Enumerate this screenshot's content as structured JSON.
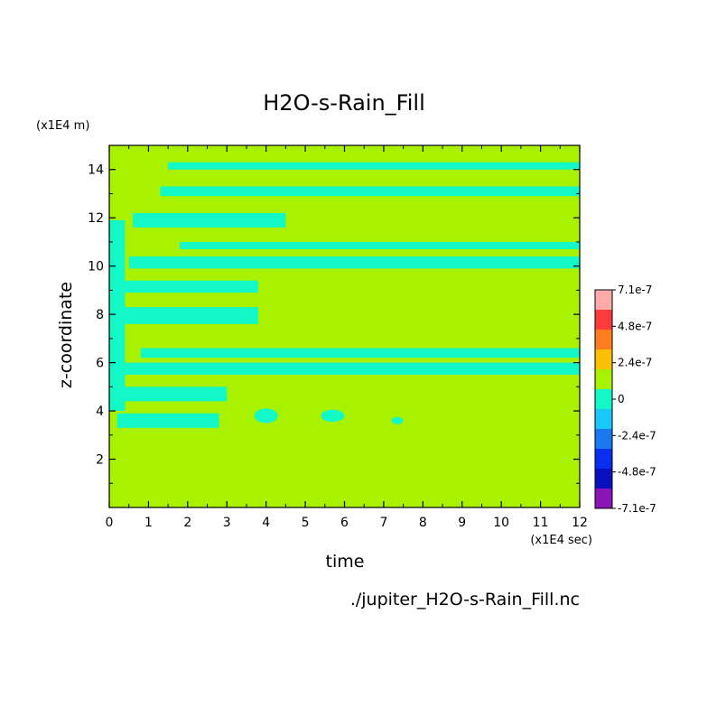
{
  "chart_data": {
    "type": "heatmap",
    "title": "H2O-s-Rain_Fill",
    "xlabel": "time",
    "ylabel": "z-coordinate",
    "x_unit": "(x1E4 sec)",
    "y_unit": "(x1E4 m)",
    "source_file": "./jupiter_H2O-s-Rain_Fill.nc",
    "xlim": [
      0,
      12
    ],
    "ylim": [
      0,
      15
    ],
    "x_ticks": [
      0,
      1,
      2,
      3,
      4,
      5,
      6,
      7,
      8,
      9,
      10,
      11,
      12
    ],
    "y_ticks": [
      2,
      4,
      6,
      8,
      10,
      12,
      14
    ],
    "background_value": 0,
    "colorbar": {
      "labels": [
        "7.1e-7",
        "4.8e-7",
        "2.4e-7",
        "0",
        "-2.4e-7",
        "-4.8e-7",
        "-7.1e-7"
      ],
      "colors": [
        "#ffaaaa",
        "#ff3a3a",
        "#ff7d1e",
        "#fdc000",
        "#a8f200",
        "#12f8c6",
        "#18c8f8",
        "#1a78f0",
        "#0a2ef0",
        "#0a10c0",
        "#8a14b4"
      ],
      "zero_color": "#a8f200",
      "negative_small_color": "#12f8c6"
    },
    "bands": [
      {
        "t0": 1.5,
        "t1": 12,
        "z0": 14.0,
        "z1": 14.3
      },
      {
        "t0": 1.3,
        "t1": 12,
        "z0": 12.9,
        "z1": 13.3
      },
      {
        "t0": 0.6,
        "t1": 4.5,
        "z0": 11.6,
        "z1": 12.2
      },
      {
        "t0": 1.8,
        "t1": 12,
        "z0": 10.7,
        "z1": 11.0
      },
      {
        "t0": 0.5,
        "t1": 12,
        "z0": 9.9,
        "z1": 10.4
      },
      {
        "t0": 0.3,
        "t1": 3.8,
        "z0": 8.9,
        "z1": 9.4
      },
      {
        "t0": 0.3,
        "t1": 3.8,
        "z0": 7.6,
        "z1": 8.3
      },
      {
        "t0": 0.8,
        "t1": 12,
        "z0": 6.2,
        "z1": 6.6
      },
      {
        "t0": 0.4,
        "t1": 12,
        "z0": 5.5,
        "z1": 6.0
      },
      {
        "t0": 0.2,
        "t1": 3.0,
        "z0": 4.4,
        "z1": 5.0
      },
      {
        "t0": 0.2,
        "t1": 2.8,
        "z0": 3.3,
        "z1": 3.9
      },
      {
        "t0": 0,
        "t1": 0.4,
        "z0": 4.0,
        "z1": 11.9
      }
    ],
    "blobs": [
      {
        "t": 4.0,
        "z": 3.8,
        "rt": 0.3,
        "rz": 0.3
      },
      {
        "t": 5.7,
        "z": 3.8,
        "rt": 0.3,
        "rz": 0.25
      },
      {
        "t": 7.35,
        "z": 3.6,
        "rt": 0.15,
        "rz": 0.15
      }
    ]
  }
}
